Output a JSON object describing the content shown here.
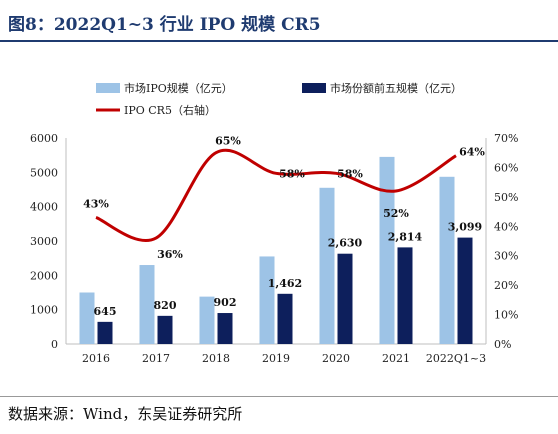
{
  "figure": {
    "title": "图8：2022Q1~3 行业 IPO 规模 CR5",
    "source": "数据来源：Wind，东吴证券研究所"
  },
  "chart_data": {
    "type": "bar",
    "categories": [
      "2016",
      "2017",
      "2018",
      "2019",
      "2020",
      "2021",
      "2022Q1~3"
    ],
    "series": [
      {
        "name": "市场IPO规模（亿元）",
        "type": "bar",
        "axis": "left",
        "color": "#9dc3e6",
        "values": [
          1500,
          2300,
          1380,
          2550,
          4550,
          5450,
          4870
        ]
      },
      {
        "name": "市场份额前五规模（亿元）",
        "type": "bar",
        "axis": "left",
        "color": "#0d1f5c",
        "values": [
          645,
          820,
          902,
          1462,
          2630,
          2814,
          3099
        ],
        "labels": [
          "645",
          "820",
          "902",
          "1,462",
          "2,630",
          "2,814",
          "3,099"
        ]
      },
      {
        "name": "IPO CR5（右轴）",
        "type": "line",
        "axis": "right",
        "color": "#c00000",
        "values": [
          43,
          36,
          65,
          58,
          58,
          52,
          64
        ],
        "labels": [
          "43%",
          "36%",
          "65%",
          "58%",
          "58%",
          "52%",
          "64%"
        ]
      }
    ],
    "y_left": {
      "min": 0,
      "max": 6000,
      "ticks": [
        "0",
        "1000",
        "2000",
        "3000",
        "4000",
        "5000",
        "6000"
      ]
    },
    "y_right": {
      "min": 0,
      "max": 70,
      "ticks": [
        "0%",
        "10%",
        "20%",
        "30%",
        "40%",
        "50%",
        "60%",
        "70%"
      ]
    },
    "legend_position": "top",
    "grid": false
  }
}
